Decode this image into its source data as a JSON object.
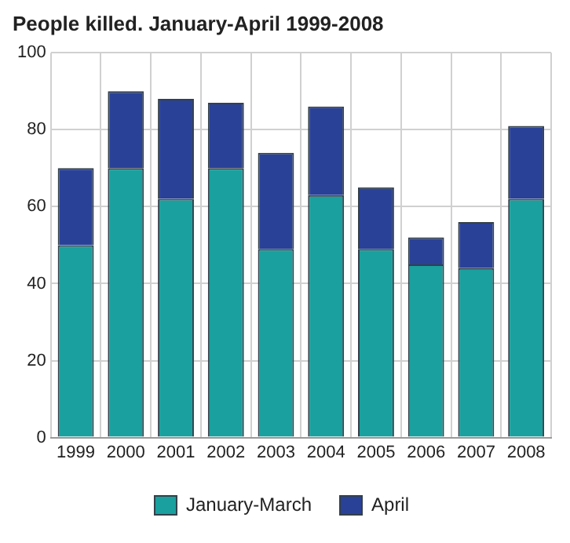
{
  "chart_data": {
    "type": "bar",
    "title": "People killed. January-April 1999-2008",
    "categories": [
      "1999",
      "2000",
      "2001",
      "2002",
      "2003",
      "2004",
      "2005",
      "2006",
      "2007",
      "2008"
    ],
    "stacked": true,
    "series": [
      {
        "name": "January-March",
        "color": "#1aa09e",
        "values": [
          50,
          70,
          62,
          70,
          49,
          63,
          49,
          45,
          44,
          62
        ]
      },
      {
        "name": "April",
        "color": "#2a4198",
        "values": [
          20,
          20,
          26,
          17,
          25,
          23,
          16,
          7,
          12,
          19
        ]
      }
    ],
    "ylim": [
      0,
      100
    ],
    "yticks": [
      0,
      20,
      40,
      60,
      80,
      100
    ],
    "grid": true,
    "legend": "bottom"
  }
}
